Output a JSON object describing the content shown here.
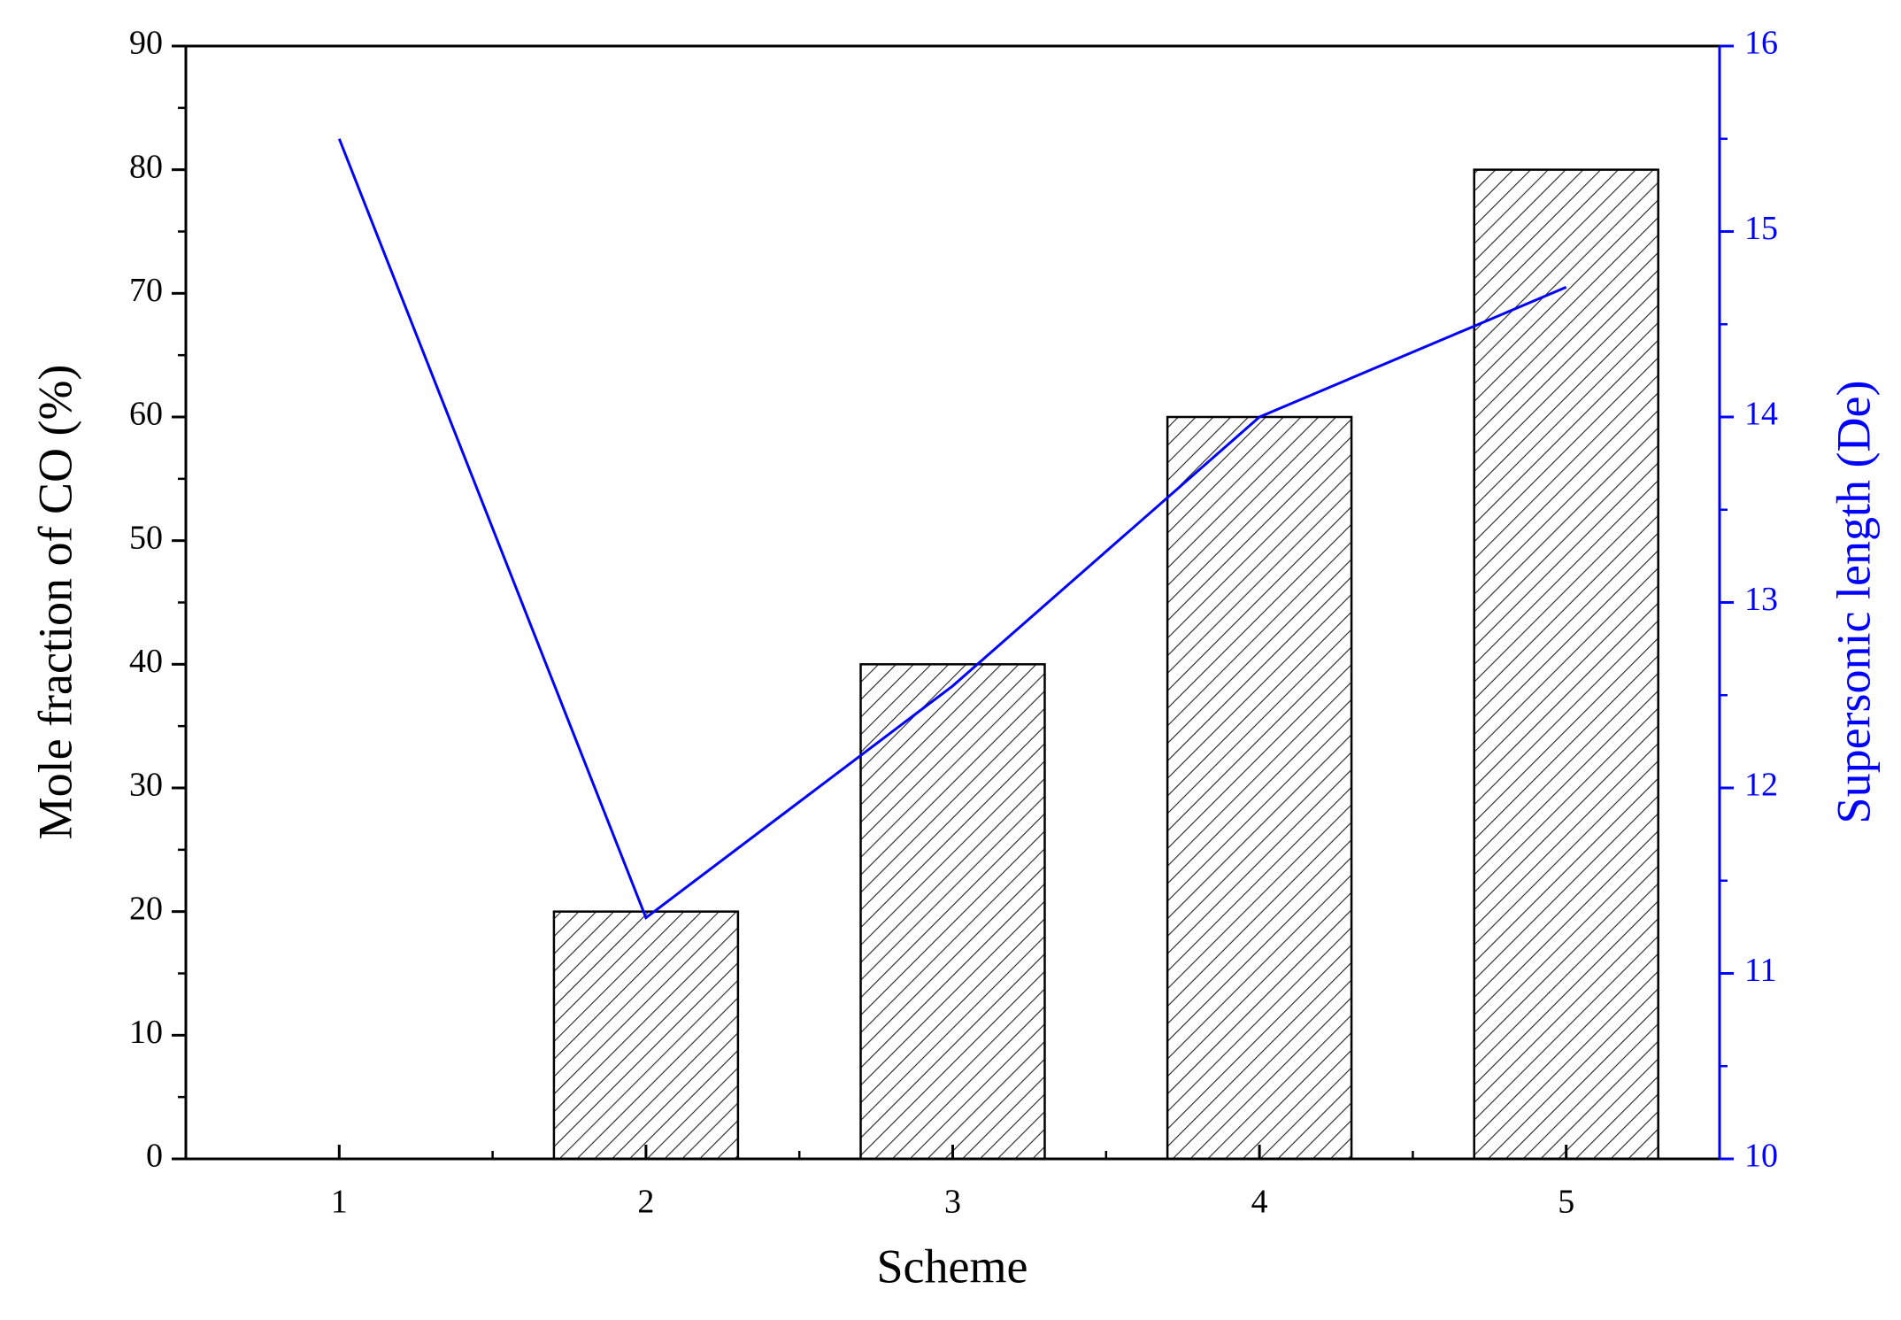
{
  "chart_data": {
    "type": "bar",
    "x_label": "Scheme",
    "y_label": "Mole fraction of CO (%)",
    "y2_label": "Supersonic length (De)",
    "categories": [
      "1",
      "2",
      "3",
      "4",
      "5"
    ],
    "series": [
      {
        "type": "bar",
        "color": "#000000",
        "hatch": true,
        "values": [
          0,
          20,
          40,
          60,
          80
        ]
      },
      {
        "type": "line",
        "color": "#0000ff",
        "axis": "y2",
        "values": [
          15.5,
          11.3,
          12.55,
          14.0,
          14.7
        ]
      }
    ],
    "ylim": [
      0,
      90
    ],
    "yticks": [
      0,
      10,
      20,
      30,
      40,
      50,
      60,
      70,
      80,
      90
    ],
    "y2lim": [
      10,
      16
    ],
    "y2ticks": [
      10,
      11,
      12,
      13,
      14,
      15,
      16
    ],
    "y2_color": "#0000ff"
  }
}
